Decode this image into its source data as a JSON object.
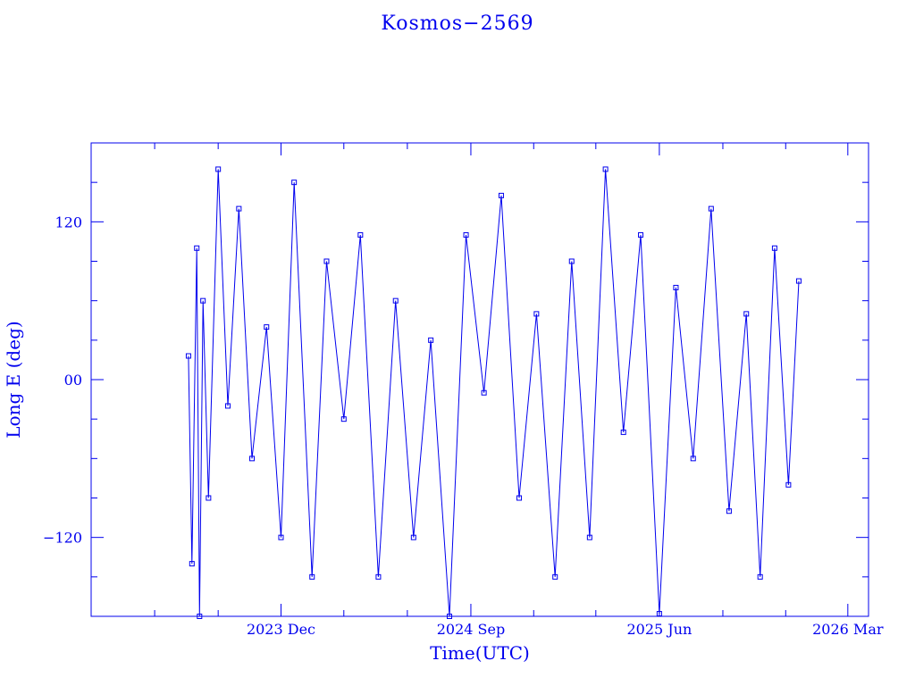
{
  "chart_data": {
    "type": "line",
    "title": "Kosmos−2569",
    "xlabel": "Time(UTC)",
    "ylabel": "Long E (deg)",
    "ylim": [
      -180,
      180
    ],
    "y_ticks": [
      120,
      0,
      -120
    ],
    "y_tick_labels": [
      "120",
      "00",
      "−120"
    ],
    "x_range": [
      "2023-03-01",
      "2026-03-31"
    ],
    "x_ticks": [
      {
        "date": "2023-12-01",
        "label": "2023 Dec"
      },
      {
        "date": "2024-09-01",
        "label": "2024 Sep"
      },
      {
        "date": "2025-06-01",
        "label": "2025 Jun"
      },
      {
        "date": "2026-03-01",
        "label": "2026 Mar"
      }
    ],
    "data_span": [
      "2023-07-20",
      "2025-12-20"
    ],
    "series_color": "#0000ee",
    "series": [
      {
        "points": [
          [
            "2023-07-20",
            18
          ],
          [
            "2023-07-25",
            -140
          ],
          [
            "2023-08-01",
            100
          ],
          [
            "2023-08-05",
            -180
          ],
          [
            "2023-08-10",
            60
          ],
          [
            "2023-08-18",
            -90
          ],
          [
            "2023-09-01",
            160
          ],
          [
            "2023-09-15",
            -20
          ],
          [
            "2023-10-01",
            130
          ],
          [
            "2023-10-20",
            -60
          ],
          [
            "2023-11-10",
            40
          ],
          [
            "2023-12-01",
            -120
          ],
          [
            "2023-12-20",
            150
          ],
          [
            "2024-01-15",
            -150
          ],
          [
            "2024-02-05",
            90
          ],
          [
            "2024-03-01",
            -30
          ],
          [
            "2024-03-25",
            110
          ],
          [
            "2024-04-20",
            -150
          ],
          [
            "2024-05-15",
            60
          ],
          [
            "2024-06-10",
            -120
          ],
          [
            "2024-07-05",
            30
          ],
          [
            "2024-08-01",
            -180
          ],
          [
            "2024-08-25",
            110
          ],
          [
            "2024-09-20",
            -10
          ],
          [
            "2024-10-15",
            140
          ],
          [
            "2024-11-10",
            -90
          ],
          [
            "2024-12-05",
            50
          ],
          [
            "2025-01-01",
            -150
          ],
          [
            "2025-01-25",
            90
          ],
          [
            "2025-02-20",
            -120
          ],
          [
            "2025-03-15",
            160
          ],
          [
            "2025-04-10",
            -40
          ],
          [
            "2025-05-05",
            110
          ],
          [
            "2025-06-01",
            -178
          ],
          [
            "2025-06-25",
            70
          ],
          [
            "2025-07-20",
            -60
          ],
          [
            "2025-08-15",
            130
          ],
          [
            "2025-09-10",
            -100
          ],
          [
            "2025-10-05",
            50
          ],
          [
            "2025-10-25",
            -150
          ],
          [
            "2025-11-15",
            100
          ],
          [
            "2025-12-05",
            -80
          ],
          [
            "2025-12-20",
            75
          ]
        ]
      }
    ]
  }
}
